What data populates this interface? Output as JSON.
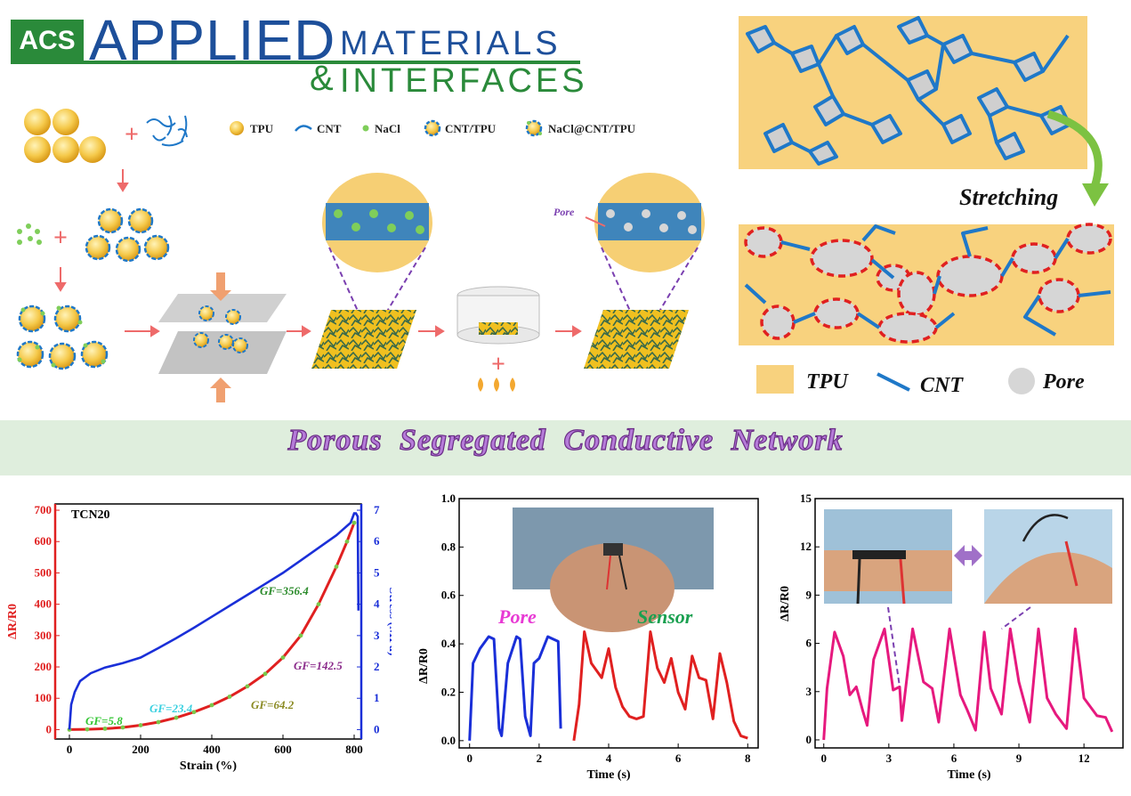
{
  "journal": {
    "acs": "ACS",
    "applied": "APPLIED",
    "materials": "MATERIALS",
    "amp": "&",
    "interfaces": "INTERFACES"
  },
  "process_legend": {
    "tpu": "TPU",
    "cnt": "CNT",
    "nacl": "NaCl",
    "cnt_tpu": "CNT/TPU",
    "nacl_cnt_tpu": "NaCl@CNT/TPU"
  },
  "process": {
    "pore_label": "Pore"
  },
  "schematic": {
    "stretching": "Stretching",
    "legend_tpu": "TPU",
    "legend_cnt": "CNT",
    "legend_pore": "Pore"
  },
  "banner": {
    "title": "Porous  Segregated  Conductive  Network"
  },
  "colors": {
    "tpu": "#f8d27e",
    "cnt": "#1f78c8",
    "pore": "#d6d6d6",
    "pore_ring": "#e02020",
    "banner_bg": "#dfeedd",
    "banner_text": "#b57bd8",
    "arrow": "#ee6a6a"
  },
  "chart_data": [
    {
      "type": "line",
      "sample_label": "TCN20",
      "xlabel": "Strain (%)",
      "ylabel_left": "ΔR/R0",
      "ylabel_right": "Stress (MPa)",
      "xlim": [
        -40,
        820
      ],
      "ylim_left": [
        -30,
        720
      ],
      "ylim_right": [
        -0.3,
        7.2
      ],
      "x_ticks": [
        "0",
        "200",
        "400",
        "600",
        "800"
      ],
      "y_ticks_left": [
        "0",
        "100",
        "200",
        "300",
        "400",
        "500",
        "600",
        "700"
      ],
      "y_ticks_right": [
        "0",
        "1",
        "2",
        "3",
        "4",
        "5",
        "6",
        "7"
      ],
      "annotations": [
        "GF=5.8",
        "GF=23.4",
        "GF=64.2",
        "GF=142.5",
        "GF=356.4"
      ],
      "series": [
        {
          "axis": "left",
          "color": "#e02020",
          "x": [
            0,
            50,
            100,
            150,
            200,
            250,
            300,
            350,
            400,
            450,
            500,
            550,
            600,
            650,
            700,
            750,
            780,
            800
          ],
          "y": [
            0,
            1,
            3,
            7,
            14,
            24,
            38,
            56,
            78,
            105,
            138,
            178,
            230,
            300,
            400,
            520,
            600,
            660
          ]
        },
        {
          "axis": "right",
          "color": "#1a2fd8",
          "x": [
            0,
            5,
            15,
            30,
            60,
            100,
            150,
            200,
            250,
            300,
            350,
            400,
            450,
            500,
            550,
            600,
            650,
            700,
            750,
            790,
            800,
            805,
            810,
            812
          ],
          "y": [
            0,
            0.8,
            1.2,
            1.55,
            1.8,
            1.98,
            2.12,
            2.3,
            2.6,
            2.92,
            3.25,
            3.6,
            3.95,
            4.3,
            4.65,
            5.0,
            5.4,
            5.8,
            6.2,
            6.6,
            6.9,
            6.9,
            6.8,
            3.8
          ]
        }
      ]
    },
    {
      "type": "line",
      "xlabel": "Time (s)",
      "ylabel": "ΔR/R0",
      "xlim": [
        -0.3,
        8.3
      ],
      "ylim": [
        -0.03,
        1.0
      ],
      "x_ticks": [
        "0",
        "2",
        "4",
        "6",
        "8"
      ],
      "y_ticks": [
        "0.0",
        "0.2",
        "0.4",
        "0.6",
        "0.8",
        "1.0"
      ],
      "annotations": [
        "Pore",
        "Sensor"
      ],
      "series": [
        {
          "color": "#1a2fd8",
          "x": [
            0,
            0.1,
            0.3,
            0.55,
            0.7,
            0.85,
            0.92,
            1.1,
            1.35,
            1.45,
            1.6,
            1.75,
            1.85,
            2.0,
            2.25,
            2.4,
            2.55,
            2.62
          ],
          "y": [
            0,
            0.32,
            0.38,
            0.43,
            0.42,
            0.05,
            0.02,
            0.32,
            0.43,
            0.42,
            0.1,
            0.02,
            0.32,
            0.34,
            0.43,
            0.42,
            0.41,
            0.05
          ]
        },
        {
          "color": "#e02020",
          "x": [
            3.0,
            3.15,
            3.3,
            3.5,
            3.8,
            4.0,
            4.2,
            4.4,
            4.6,
            4.8,
            5.0,
            5.2,
            5.4,
            5.6,
            5.8,
            6.0,
            6.2,
            6.4,
            6.6,
            6.8,
            7.0,
            7.2,
            7.4,
            7.6,
            7.8,
            8.0
          ],
          "y": [
            0,
            0.15,
            0.45,
            0.32,
            0.26,
            0.38,
            0.22,
            0.14,
            0.1,
            0.09,
            0.1,
            0.45,
            0.3,
            0.24,
            0.34,
            0.2,
            0.13,
            0.35,
            0.26,
            0.25,
            0.09,
            0.36,
            0.24,
            0.08,
            0.02,
            0.01
          ]
        }
      ]
    },
    {
      "type": "line",
      "xlabel": "Time (s)",
      "ylabel": "ΔR/R0",
      "xlim": [
        -0.4,
        13.8
      ],
      "ylim": [
        -0.5,
        15
      ],
      "x_ticks": [
        "0",
        "3",
        "6",
        "9",
        "12"
      ],
      "y_ticks": [
        "0",
        "3",
        "6",
        "9",
        "12",
        "15"
      ],
      "series": [
        {
          "color": "#e6197e",
          "x": [
            0,
            0.15,
            0.5,
            0.9,
            1.2,
            1.5,
            1.8,
            2.0,
            2.3,
            2.8,
            3.2,
            3.5,
            3.6,
            4.1,
            4.6,
            5.0,
            5.3,
            5.8,
            6.3,
            6.6,
            7.0,
            7.4,
            7.7,
            8.2,
            8.6,
            9.0,
            9.5,
            9.9,
            10.3,
            10.7,
            11.2,
            11.6,
            12.0,
            12.6,
            13.0,
            13.3
          ],
          "y": [
            0,
            3.2,
            6.7,
            5.2,
            2.8,
            3.3,
            1.8,
            0.9,
            5.0,
            6.9,
            3.1,
            3.3,
            1.2,
            6.9,
            3.6,
            3.2,
            1.1,
            6.9,
            2.8,
            1.9,
            0.6,
            6.7,
            3.2,
            1.6,
            6.9,
            3.6,
            1.1,
            6.9,
            2.6,
            1.6,
            0.7,
            6.9,
            2.6,
            1.5,
            1.4,
            0.5
          ]
        }
      ]
    }
  ]
}
